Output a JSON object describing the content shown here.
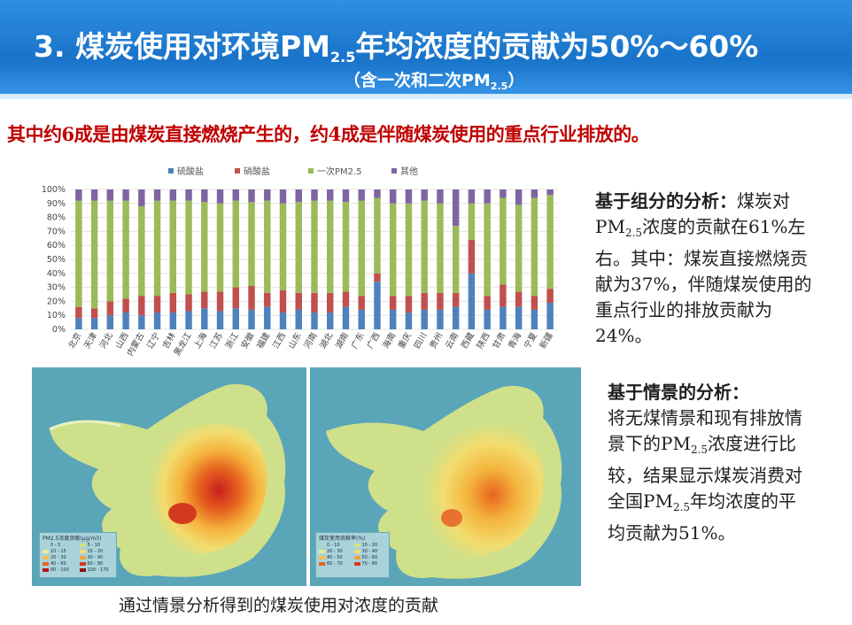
{
  "header": {
    "title_pre": "3.  煤炭使用对环境PM",
    "title_sub": "2.5",
    "title_post": "年均浓度的贡献为50%～60%",
    "subtitle_pre": "（含一次和二次PM",
    "subtitle_sub": "2.5",
    "subtitle_post": "）"
  },
  "summary": "其中约6成是由煤炭直接燃烧产生的，约4成是伴随煤炭使用的重点行业排放的。",
  "component_analysis": {
    "heading": "基于组分的分析：",
    "t1": "煤炭对PM",
    "t1_sub": "2.5",
    "t2": "浓度的贡献在61%左右。其中：煤炭直接燃烧贡献为37%，伴随煤炭使用的重点行业的排放贡献为24%。"
  },
  "scenario_analysis": {
    "heading": "基于情景的分析：",
    "t1": "将无煤情景和现有排放情景下的PM",
    "t1_sub": "2.5",
    "t2": "浓度进行比较，结果显示煤炭消费对全国PM",
    "t2_sub": "2.5",
    "t3": "年均浓度的平均贡献为51%。"
  },
  "map_caption": "通过情景分析得到的煤炭使用对浓度的贡献",
  "colors": {
    "sulfate": "#4f81bd",
    "nitrate": "#c0504d",
    "primary": "#9bbb59",
    "other": "#8064a2"
  },
  "chart_data": {
    "type": "bar",
    "stacked": true,
    "percent": true,
    "legend_position": "top",
    "ylim": [
      0,
      100
    ],
    "yticks": [
      "0%",
      "10%",
      "20%",
      "30%",
      "40%",
      "50%",
      "60%",
      "70%",
      "80%",
      "90%",
      "100%"
    ],
    "categories": [
      "北京",
      "天津",
      "河北",
      "山西",
      "内蒙古",
      "辽宁",
      "吉林",
      "黑龙江",
      "上海",
      "江苏",
      "浙江",
      "安徽",
      "福建",
      "江西",
      "山东",
      "河南",
      "湖北",
      "湖南",
      "广东",
      "广西",
      "海南",
      "重庆",
      "四川",
      "贵州",
      "云南",
      "西藏",
      "陕西",
      "甘肃",
      "青海",
      "宁夏",
      "新疆"
    ],
    "series": [
      {
        "name": "硫酸盐",
        "values": [
          8,
          8,
          10,
          12,
          10,
          12,
          12,
          13,
          15,
          13,
          15,
          14,
          16,
          12,
          14,
          12,
          12,
          16,
          14,
          34,
          14,
          12,
          14,
          14,
          16,
          40,
          14,
          16,
          16,
          14,
          19
        ]
      },
      {
        "name": "硝酸盐",
        "values": [
          8,
          7,
          10,
          10,
          14,
          12,
          14,
          12,
          12,
          14,
          15,
          17,
          10,
          16,
          12,
          14,
          14,
          11,
          10,
          6,
          10,
          12,
          12,
          12,
          10,
          24,
          10,
          16,
          11,
          10,
          10
        ]
      },
      {
        "name": "一次PM2.5",
        "values": [
          76,
          77,
          72,
          70,
          64,
          68,
          66,
          67,
          64,
          63,
          62,
          60,
          66,
          62,
          65,
          66,
          66,
          64,
          68,
          54,
          66,
          66,
          66,
          64,
          48,
          26,
          66,
          62,
          62,
          70,
          67
        ]
      },
      {
        "name": "其他",
        "values": [
          8,
          8,
          8,
          8,
          12,
          8,
          8,
          8,
          9,
          10,
          8,
          9,
          8,
          10,
          9,
          8,
          8,
          9,
          8,
          6,
          10,
          10,
          8,
          10,
          26,
          10,
          10,
          6,
          11,
          6,
          4
        ]
      }
    ]
  },
  "map_left": {
    "legend_title": "PM2.5浓度贡献(μg/m3)",
    "legend_items": [
      "0 - 5",
      "5 - 10",
      "10 - 15",
      "15 - 20",
      "20 - 30",
      "30 - 40",
      "40 - 60",
      "60 - 80",
      "80 - 100",
      "100 - 170"
    ]
  },
  "map_right": {
    "legend_title": "煤炭使用贡献率(%)",
    "legend_items": [
      "0 - 10",
      "10 - 20",
      "20 - 30",
      "30 - 40",
      "40 - 50",
      "50 - 60",
      "60 - 70",
      "70 - 80"
    ]
  }
}
